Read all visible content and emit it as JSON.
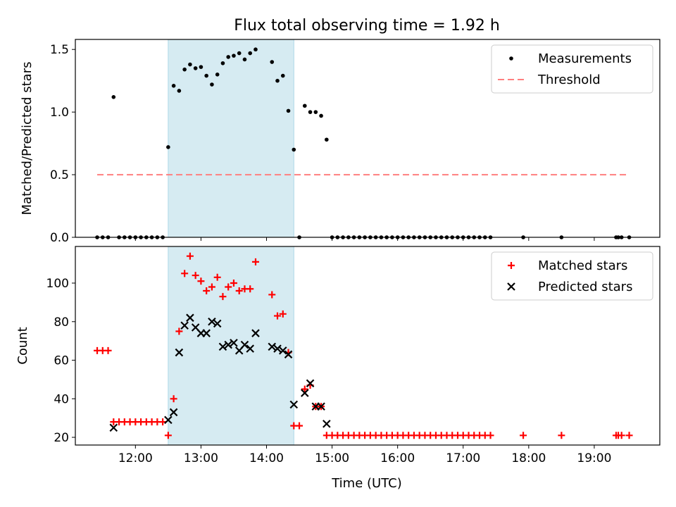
{
  "figure": {
    "title": "Flux total observing time = 1.92 h",
    "xlabel": "Time (UTC)",
    "xtick_labels": [
      "12:00",
      "13:00",
      "14:00",
      "15:00",
      "16:00",
      "17:00",
      "18:00",
      "19:00"
    ]
  },
  "colors": {
    "shade": "#add8e6",
    "threshold": "#ff7f7f",
    "matched": "#ff0000",
    "predicted": "#000000",
    "measurement": "#000000"
  },
  "chart_data": [
    {
      "type": "scatter",
      "ylabel": "Matched/Predicted stars",
      "ylim": [
        0,
        1.58
      ],
      "xlim": [
        "11:05",
        "20:00"
      ],
      "yticks": [
        0,
        0.5,
        1.0,
        1.5
      ],
      "ytick_labels": [
        "0.0",
        "0.5",
        "1.0",
        "1.5"
      ],
      "legend_position": "top-right",
      "shaded_interval": [
        "12:30",
        "14:25"
      ],
      "series": [
        {
          "name": "Measurements",
          "marker": "dot",
          "points": [
            [
              "11:25",
              0
            ],
            [
              "11:30",
              0
            ],
            [
              "11:35",
              0
            ],
            [
              "11:40",
              1.12
            ],
            [
              "11:45",
              0
            ],
            [
              "11:50",
              0
            ],
            [
              "11:55",
              0
            ],
            [
              "12:00",
              0
            ],
            [
              "12:05",
              0
            ],
            [
              "12:10",
              0
            ],
            [
              "12:15",
              0
            ],
            [
              "12:20",
              0
            ],
            [
              "12:25",
              0
            ],
            [
              "12:30",
              0.72
            ],
            [
              "12:35",
              1.21
            ],
            [
              "12:40",
              1.17
            ],
            [
              "12:45",
              1.34
            ],
            [
              "12:50",
              1.38
            ],
            [
              "12:55",
              1.35
            ],
            [
              "13:00",
              1.36
            ],
            [
              "13:05",
              1.29
            ],
            [
              "13:10",
              1.22
            ],
            [
              "13:15",
              1.3
            ],
            [
              "13:20",
              1.39
            ],
            [
              "13:25",
              1.44
            ],
            [
              "13:30",
              1.45
            ],
            [
              "13:35",
              1.47
            ],
            [
              "13:40",
              1.42
            ],
            [
              "13:45",
              1.47
            ],
            [
              "13:50",
              1.5
            ],
            [
              "14:05",
              1.4
            ],
            [
              "14:10",
              1.25
            ],
            [
              "14:15",
              1.29
            ],
            [
              "14:20",
              1.01
            ],
            [
              "14:25",
              0.7
            ],
            [
              "14:30",
              0
            ],
            [
              "14:35",
              1.05
            ],
            [
              "14:40",
              1.0
            ],
            [
              "14:45",
              1.0
            ],
            [
              "14:50",
              0.97
            ],
            [
              "14:55",
              0.78
            ],
            [
              "15:00",
              0
            ],
            [
              "15:05",
              0
            ],
            [
              "15:10",
              0
            ],
            [
              "15:15",
              0
            ],
            [
              "15:20",
              0
            ],
            [
              "15:25",
              0
            ],
            [
              "15:30",
              0
            ],
            [
              "15:35",
              0
            ],
            [
              "15:40",
              0
            ],
            [
              "15:45",
              0
            ],
            [
              "15:50",
              0
            ],
            [
              "15:55",
              0
            ],
            [
              "16:00",
              0
            ],
            [
              "16:05",
              0
            ],
            [
              "16:10",
              0
            ],
            [
              "16:15",
              0
            ],
            [
              "16:20",
              0
            ],
            [
              "16:25",
              0
            ],
            [
              "16:30",
              0
            ],
            [
              "16:35",
              0
            ],
            [
              "16:40",
              0
            ],
            [
              "16:45",
              0
            ],
            [
              "16:50",
              0
            ],
            [
              "16:55",
              0
            ],
            [
              "17:00",
              0
            ],
            [
              "17:05",
              0
            ],
            [
              "17:10",
              0
            ],
            [
              "17:15",
              0
            ],
            [
              "17:20",
              0
            ],
            [
              "17:25",
              0
            ],
            [
              "17:55",
              0
            ],
            [
              "18:30",
              0
            ],
            [
              "19:20",
              0
            ],
            [
              "19:22",
              0
            ],
            [
              "19:25",
              0
            ],
            [
              "19:32",
              0
            ]
          ]
        },
        {
          "name": "Threshold",
          "marker": "dashed-line",
          "points": [
            [
              "11:25",
              0.5
            ],
            [
              "19:32",
              0.5
            ]
          ]
        }
      ]
    },
    {
      "type": "scatter",
      "ylabel": "Count",
      "ylim": [
        16,
        119
      ],
      "xlim": [
        "11:05",
        "20:00"
      ],
      "yticks": [
        20,
        40,
        60,
        80,
        100
      ],
      "ytick_labels": [
        "20",
        "40",
        "60",
        "80",
        "100"
      ],
      "legend_position": "top-right",
      "shaded_interval": [
        "12:30",
        "14:25"
      ],
      "series": [
        {
          "name": "Matched stars",
          "marker": "plus",
          "points": [
            [
              "11:25",
              65
            ],
            [
              "11:30",
              65
            ],
            [
              "11:35",
              65
            ],
            [
              "11:40",
              28
            ],
            [
              "11:45",
              28
            ],
            [
              "11:50",
              28
            ],
            [
              "11:55",
              28
            ],
            [
              "12:00",
              28
            ],
            [
              "12:05",
              28
            ],
            [
              "12:10",
              28
            ],
            [
              "12:15",
              28
            ],
            [
              "12:20",
              28
            ],
            [
              "12:25",
              28
            ],
            [
              "12:30",
              21
            ],
            [
              "12:35",
              40
            ],
            [
              "12:40",
              75
            ],
            [
              "12:45",
              105
            ],
            [
              "12:50",
              114
            ],
            [
              "12:55",
              104
            ],
            [
              "13:00",
              101
            ],
            [
              "13:05",
              96
            ],
            [
              "13:10",
              98
            ],
            [
              "13:15",
              103
            ],
            [
              "13:20",
              93
            ],
            [
              "13:25",
              98
            ],
            [
              "13:30",
              100
            ],
            [
              "13:35",
              96
            ],
            [
              "13:40",
              97
            ],
            [
              "13:45",
              97
            ],
            [
              "13:50",
              111
            ],
            [
              "14:05",
              94
            ],
            [
              "14:10",
              83
            ],
            [
              "14:15",
              84
            ],
            [
              "14:20",
              64
            ],
            [
              "14:25",
              26
            ],
            [
              "14:30",
              26
            ],
            [
              "14:35",
              45
            ],
            [
              "14:40",
              47
            ],
            [
              "14:45",
              36
            ],
            [
              "14:50",
              36
            ],
            [
              "14:55",
              21
            ],
            [
              "15:00",
              21
            ],
            [
              "15:05",
              21
            ],
            [
              "15:10",
              21
            ],
            [
              "15:15",
              21
            ],
            [
              "15:20",
              21
            ],
            [
              "15:25",
              21
            ],
            [
              "15:30",
              21
            ],
            [
              "15:35",
              21
            ],
            [
              "15:40",
              21
            ],
            [
              "15:45",
              21
            ],
            [
              "15:50",
              21
            ],
            [
              "15:55",
              21
            ],
            [
              "16:00",
              21
            ],
            [
              "16:05",
              21
            ],
            [
              "16:10",
              21
            ],
            [
              "16:15",
              21
            ],
            [
              "16:20",
              21
            ],
            [
              "16:25",
              21
            ],
            [
              "16:30",
              21
            ],
            [
              "16:35",
              21
            ],
            [
              "16:40",
              21
            ],
            [
              "16:45",
              21
            ],
            [
              "16:50",
              21
            ],
            [
              "16:55",
              21
            ],
            [
              "17:00",
              21
            ],
            [
              "17:05",
              21
            ],
            [
              "17:10",
              21
            ],
            [
              "17:15",
              21
            ],
            [
              "17:20",
              21
            ],
            [
              "17:25",
              21
            ],
            [
              "17:55",
              21
            ],
            [
              "18:30",
              21
            ],
            [
              "19:20",
              21
            ],
            [
              "19:22",
              21
            ],
            [
              "19:25",
              21
            ],
            [
              "19:32",
              21
            ]
          ]
        },
        {
          "name": "Predicted stars",
          "marker": "x",
          "points": [
            [
              "11:40",
              25
            ],
            [
              "12:30",
              29
            ],
            [
              "12:35",
              33
            ],
            [
              "12:40",
              64
            ],
            [
              "12:45",
              78
            ],
            [
              "12:50",
              82
            ],
            [
              "12:55",
              77
            ],
            [
              "13:00",
              74
            ],
            [
              "13:05",
              74
            ],
            [
              "13:10",
              80
            ],
            [
              "13:15",
              79
            ],
            [
              "13:20",
              67
            ],
            [
              "13:25",
              68
            ],
            [
              "13:30",
              69
            ],
            [
              "13:35",
              65
            ],
            [
              "13:40",
              68
            ],
            [
              "13:45",
              66
            ],
            [
              "13:50",
              74
            ],
            [
              "14:05",
              67
            ],
            [
              "14:10",
              66
            ],
            [
              "14:15",
              65
            ],
            [
              "14:20",
              63
            ],
            [
              "14:25",
              37
            ],
            [
              "14:35",
              43
            ],
            [
              "14:40",
              48
            ],
            [
              "14:45",
              36
            ],
            [
              "14:50",
              36
            ],
            [
              "14:55",
              27
            ]
          ]
        }
      ]
    }
  ]
}
